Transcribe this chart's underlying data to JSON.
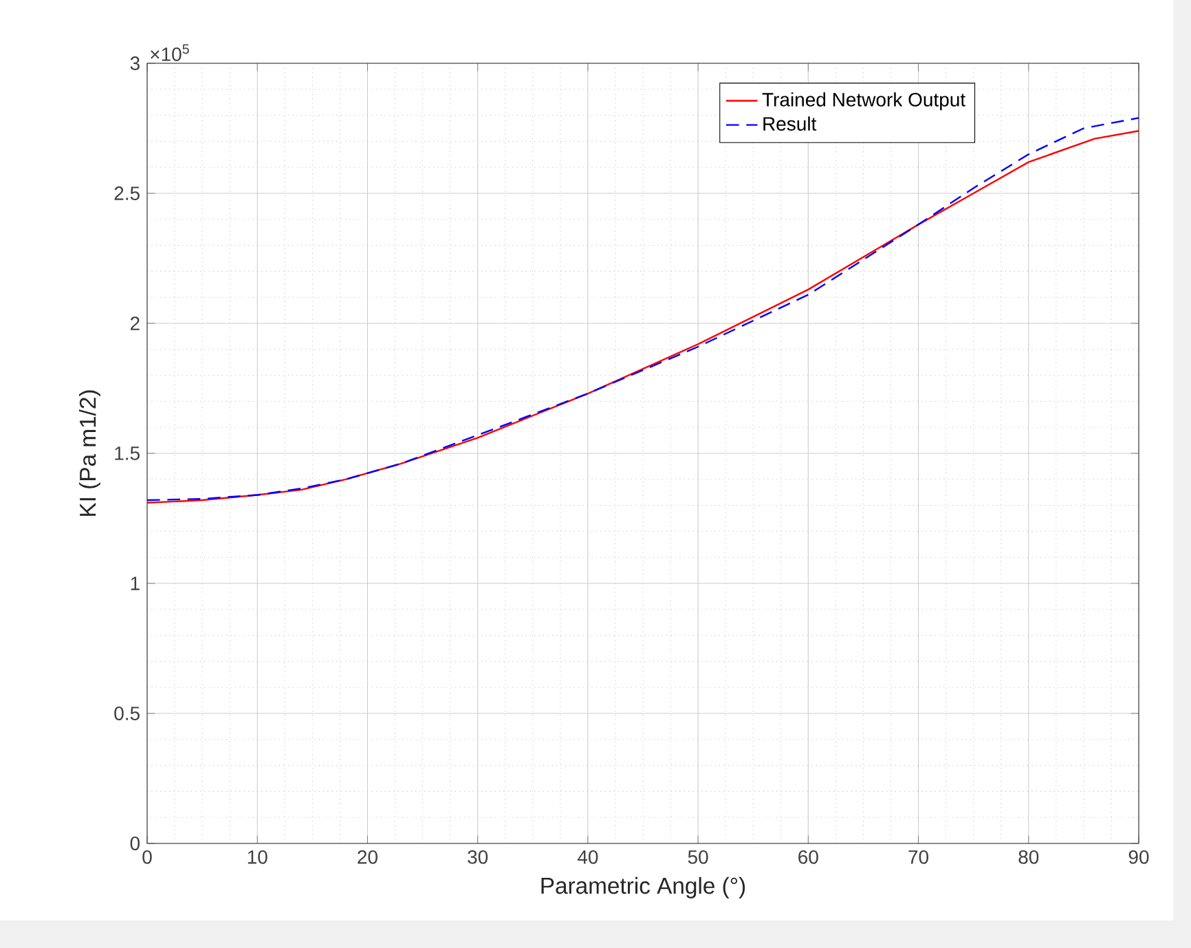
{
  "chart_data": {
    "type": "line",
    "xlabel": "Parametric Angle (°)",
    "ylabel": "KI (Pa m1/2)",
    "annotations": [
      "×10$^{5}$"
    ],
    "xlim": [
      0,
      90
    ],
    "xticks": [
      0,
      10,
      20,
      30,
      40,
      50,
      60,
      70,
      80,
      90
    ],
    "ylim": [
      0,
      3
    ],
    "yticks": [
      0,
      0.5,
      1,
      1.5,
      2,
      2.5,
      3
    ],
    "grid": true,
    "legend": "top right",
    "marker": "none",
    "series": [
      {
        "name": "Trained Network Output",
        "color": "#ff0000",
        "line_style": "solid",
        "x": [
          0,
          5,
          10,
          14,
          18,
          23,
          30,
          40,
          50,
          60,
          70,
          75,
          80,
          86,
          90
        ],
        "values": [
          1.31,
          1.32,
          1.34,
          1.36,
          1.4,
          1.46,
          1.56,
          1.73,
          1.92,
          2.13,
          2.38,
          2.5,
          2.62,
          2.71,
          2.74
        ]
      },
      {
        "name": "Result",
        "color": "#0000ff",
        "line_style": "dashed",
        "x": [
          0,
          5,
          10,
          14,
          18,
          23,
          30,
          40,
          50,
          57,
          60,
          70,
          75,
          80,
          85,
          90
        ],
        "values": [
          1.32,
          1.325,
          1.34,
          1.365,
          1.4,
          1.46,
          1.57,
          1.73,
          1.91,
          2.05,
          2.11,
          2.38,
          2.52,
          2.65,
          2.75,
          2.79
        ]
      }
    ]
  }
}
